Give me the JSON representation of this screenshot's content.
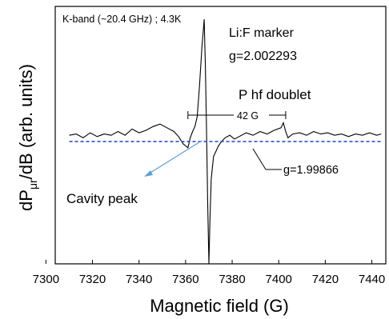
{
  "chart_data": {
    "type": "line",
    "xlabel": "Magnetic field (G)",
    "ylabel_main": "dP",
    "ylabel_sub": "μr",
    "ylabel_rest": "/dB (arb. units)",
    "xlim": [
      7304,
      7446
    ],
    "ylim": [
      -1,
      1
    ],
    "x_ticks": [
      7300,
      7320,
      7340,
      7360,
      7380,
      7400,
      7420,
      7440
    ],
    "grid": false,
    "series": [
      {
        "style": "solid",
        "color": "#000000",
        "x": [
          7310,
          7313,
          7316,
          7319,
          7322,
          7325,
          7328,
          7331,
          7334,
          7337,
          7340,
          7343,
          7346,
          7349,
          7352,
          7355,
          7357,
          7359,
          7361,
          7362,
          7363,
          7364,
          7365,
          7366,
          7367,
          7368,
          7368.5,
          7369,
          7369.5,
          7370,
          7370.5,
          7371,
          7372,
          7373,
          7374,
          7375,
          7377,
          7379,
          7381,
          7383,
          7386,
          7389,
          7392,
          7395,
          7398,
          7401,
          7402,
          7403,
          7404,
          7406,
          7409,
          7412,
          7415,
          7418,
          7421,
          7424,
          7427,
          7430,
          7433,
          7436,
          7439,
          7442,
          7444
        ],
        "y": [
          0.05,
          0.06,
          0.03,
          0.07,
          0.04,
          0.06,
          0.05,
          0.08,
          0.05,
          0.1,
          0.07,
          0.09,
          0.12,
          0.14,
          0.11,
          0.08,
          0.04,
          -0.02,
          -0.05,
          0.03,
          0.08,
          0.12,
          0.2,
          0.45,
          0.75,
          0.98,
          0.6,
          0.1,
          -0.5,
          -0.98,
          -0.6,
          -0.3,
          -0.12,
          -0.08,
          -0.04,
          -0.01,
          0.03,
          0.05,
          0.02,
          0.04,
          0.07,
          0.05,
          0.08,
          0.06,
          0.09,
          0.11,
          0.15,
          0.08,
          0.03,
          0.06,
          0.07,
          0.05,
          0.08,
          0.06,
          0.07,
          0.05,
          0.06,
          0.04,
          0.06,
          0.05,
          0.07,
          0.05,
          0.06
        ]
      },
      {
        "style": "dashed",
        "color": "#1f3fd6",
        "x": [
          7310,
          7444
        ],
        "y": [
          0,
          0
        ]
      }
    ],
    "annotations": {
      "band": "K-band (~20.4 GHz) ; 4.3K",
      "marker_label": "Li:F marker",
      "marker_g": "g=2.002293",
      "doublet_label": "P hf doublet",
      "doublet_spacing": "42 G",
      "doublet_g": "g=1.99866",
      "cavity_label": "Cavity peak"
    }
  }
}
